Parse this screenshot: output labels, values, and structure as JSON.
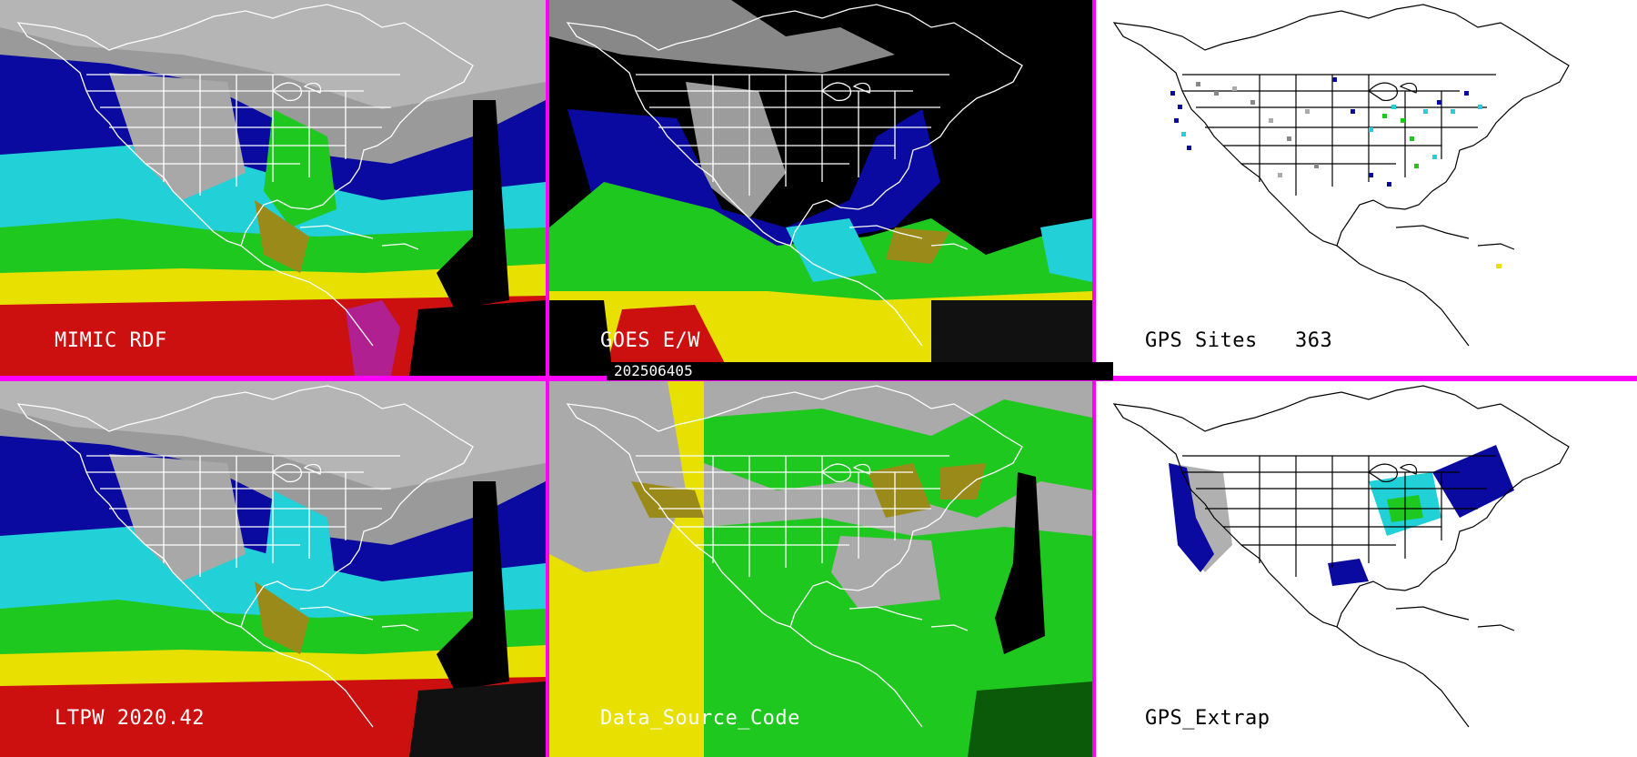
{
  "panels": {
    "mimic": {
      "title": "MIMIC RDF"
    },
    "goes": {
      "title": "GOES E/W"
    },
    "gps_sites": {
      "title": "GPS Sites",
      "count": "363"
    },
    "ltpw": {
      "title": "LTPW 2020.42"
    },
    "source": {
      "title": "Data_Source_Code"
    },
    "gps_extrap": {
      "title": "GPS_Extrap"
    }
  },
  "timestamp": "202506405",
  "colors": {
    "separator": "#ff00ff",
    "dry": "#9a9a9a",
    "moist_blue": "#0a0aa0",
    "cyan": "#22d0d8",
    "green": "#1ec81e",
    "olive": "#9a8a1a",
    "yellow": "#e8e000",
    "red": "#cc1010",
    "magenta_rain": "#b02090",
    "no_data": "#000000",
    "map_lines": "#ffffff",
    "source_gray": "#aaaaaa"
  }
}
